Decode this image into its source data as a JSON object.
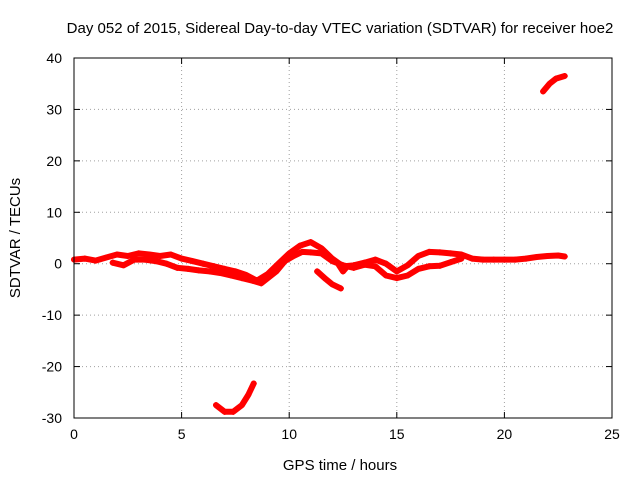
{
  "chart_data": {
    "type": "scatter",
    "title": "Day 052 of 2015, Sidereal Day-to-day VTEC variation (SDTVAR) for receiver hoe2",
    "xlabel": "GPS time / hours",
    "ylabel": "SDTVAR / TECUs",
    "xlim": [
      0,
      25
    ],
    "ylim": [
      -30,
      40
    ],
    "xticks": [
      0,
      5,
      10,
      15,
      20,
      25
    ],
    "yticks": [
      -30,
      -20,
      -10,
      0,
      10,
      20,
      30,
      40
    ],
    "grid": true,
    "series_color": "#ff0000",
    "series": [
      {
        "name": "main-track-upper",
        "points": [
          [
            0,
            0.8
          ],
          [
            0.5,
            1.0
          ],
          [
            1,
            0.6
          ],
          [
            1.5,
            1.2
          ],
          [
            2,
            1.8
          ],
          [
            2.5,
            1.5
          ],
          [
            3,
            2.0
          ],
          [
            3.5,
            1.8
          ],
          [
            4,
            1.5
          ],
          [
            4.5,
            1.8
          ],
          [
            5,
            1.0
          ],
          [
            5.5,
            0.5
          ],
          [
            6,
            0.0
          ],
          [
            6.5,
            -0.5
          ],
          [
            7,
            -1.0
          ],
          [
            7.5,
            -1.5
          ],
          [
            8,
            -2.2
          ],
          [
            8.5,
            -3.3
          ],
          [
            9,
            -2.0
          ],
          [
            9.5,
            0.0
          ],
          [
            10,
            2.0
          ],
          [
            10.5,
            3.5
          ],
          [
            11,
            4.2
          ],
          [
            11.5,
            3.0
          ],
          [
            12,
            1.0
          ],
          [
            12.5,
            -0.5
          ],
          [
            13,
            -0.3
          ],
          [
            13.5,
            0.2
          ],
          [
            14,
            0.8
          ],
          [
            14.5,
            0.0
          ],
          [
            15,
            -1.5
          ],
          [
            15.5,
            -0.3
          ],
          [
            16,
            1.5
          ],
          [
            16.5,
            2.3
          ],
          [
            17,
            2.2
          ],
          [
            17.5,
            2.0
          ],
          [
            18,
            1.8
          ],
          [
            18.5,
            1.0
          ],
          [
            19,
            0.8
          ],
          [
            19.5,
            0.8
          ],
          [
            20,
            0.8
          ],
          [
            20.5,
            0.8
          ],
          [
            21,
            1.0
          ],
          [
            21.5,
            1.3
          ],
          [
            22,
            1.5
          ],
          [
            22.5,
            1.6
          ],
          [
            22.8,
            1.4
          ]
        ]
      },
      {
        "name": "main-track-lower",
        "points": [
          [
            1.8,
            0.2
          ],
          [
            2.3,
            -0.3
          ],
          [
            2.8,
            0.8
          ],
          [
            3.3,
            0.8
          ],
          [
            3.8,
            0.5
          ],
          [
            4.3,
            0.0
          ],
          [
            4.8,
            -0.8
          ],
          [
            5.3,
            -1.0
          ],
          [
            5.8,
            -1.3
          ],
          [
            6.3,
            -1.5
          ],
          [
            6.8,
            -1.8
          ],
          [
            7.3,
            -2.3
          ],
          [
            7.8,
            -2.8
          ],
          [
            8.3,
            -3.3
          ],
          [
            8.7,
            -3.8
          ],
          [
            9.0,
            -2.8
          ],
          [
            9.4,
            -1.5
          ],
          [
            9.8,
            0.5
          ],
          [
            10.2,
            1.5
          ],
          [
            10.6,
            2.3
          ],
          [
            11.0,
            2.2
          ],
          [
            11.5,
            2.0
          ],
          [
            12.0,
            0.5
          ],
          [
            12.5,
            -0.3
          ],
          [
            13.0,
            -0.8
          ],
          [
            13.5,
            -0.2
          ],
          [
            14.0,
            -0.5
          ],
          [
            14.5,
            -2.3
          ],
          [
            15.0,
            -2.8
          ],
          [
            15.5,
            -2.3
          ],
          [
            16.0,
            -1.0
          ],
          [
            16.5,
            -0.5
          ],
          [
            17.0,
            -0.4
          ],
          [
            17.5,
            0.3
          ],
          [
            18.0,
            1.0
          ]
        ]
      },
      {
        "name": "drop-segment",
        "points": [
          [
            11.3,
            -1.5
          ],
          [
            11.7,
            -3.0
          ],
          [
            12.0,
            -4.0
          ],
          [
            12.4,
            -4.8
          ]
        ]
      },
      {
        "name": "small-dip",
        "points": [
          [
            12.3,
            -0.2
          ],
          [
            12.5,
            -1.5
          ],
          [
            12.7,
            -0.5
          ]
        ]
      },
      {
        "name": "lower-arc",
        "points": [
          [
            6.6,
            -27.5
          ],
          [
            7.0,
            -28.8
          ],
          [
            7.4,
            -28.8
          ],
          [
            7.8,
            -27.5
          ],
          [
            8.1,
            -25.5
          ],
          [
            8.35,
            -23.3
          ]
        ]
      },
      {
        "name": "upper-segment",
        "points": [
          [
            21.8,
            33.5
          ],
          [
            22.1,
            35.0
          ],
          [
            22.4,
            36.0
          ],
          [
            22.8,
            36.5
          ]
        ]
      }
    ]
  }
}
